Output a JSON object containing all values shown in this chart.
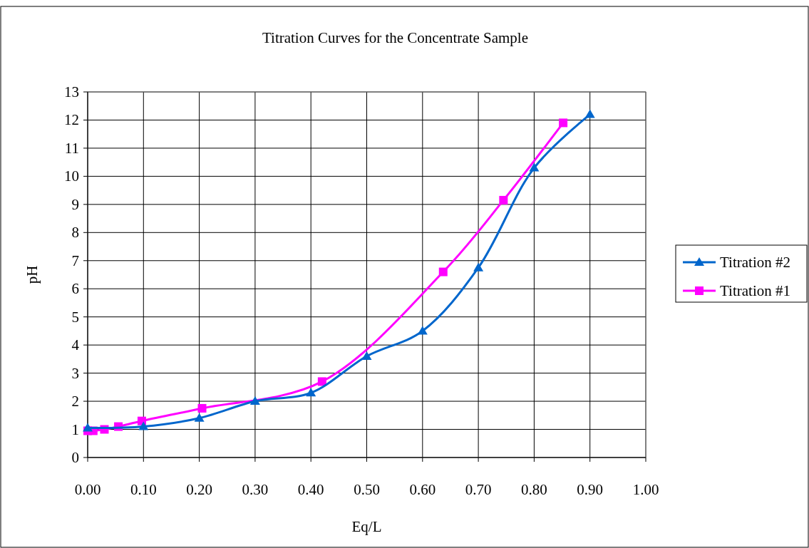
{
  "chart_data": {
    "type": "line",
    "title": "Titration Curves for the Concentrate Sample",
    "xlabel": "Eq/L",
    "ylabel": "pH",
    "xlim": [
      0,
      1
    ],
    "ylim": [
      0,
      13
    ],
    "xticks": [
      {
        "value": 0,
        "label": "0.00"
      },
      {
        "value": 0.1,
        "label": "0.10"
      },
      {
        "value": 0.2,
        "label": "0.20"
      },
      {
        "value": 0.3,
        "label": "0.30"
      },
      {
        "value": 0.4,
        "label": "0.40"
      },
      {
        "value": 0.5,
        "label": "0.50"
      },
      {
        "value": 0.6,
        "label": "0.60"
      },
      {
        "value": 0.7,
        "label": "0.70"
      },
      {
        "value": 0.8,
        "label": "0.80"
      },
      {
        "value": 0.9,
        "label": "0.90"
      },
      {
        "value": 1,
        "label": "1.00"
      }
    ],
    "yticks": [
      0,
      1,
      2,
      3,
      4,
      5,
      6,
      7,
      8,
      9,
      10,
      11,
      12,
      13
    ],
    "grid": true,
    "legend": "right",
    "line_style": "solid",
    "series": [
      {
        "name": "Titration #2",
        "color": "#0066cc",
        "marker": "triangle",
        "x": [
          0,
          0.1,
          0.2,
          0.3,
          0.4,
          0.5,
          0.6,
          0.7,
          0.8,
          0.9
        ],
        "values": [
          1.05,
          1.1,
          1.4,
          2.0,
          2.3,
          3.6,
          4.5,
          6.75,
          10.3,
          12.2
        ]
      },
      {
        "name": "Titration #1",
        "color": "#ff00ff",
        "marker": "square",
        "x": [
          0,
          0.01,
          0.03,
          0.055,
          0.097,
          0.205,
          0.42,
          0.637,
          0.745,
          0.852
        ],
        "values": [
          0.95,
          0.95,
          1.0,
          1.1,
          1.3,
          1.75,
          2.7,
          6.6,
          9.15,
          11.9
        ]
      }
    ]
  }
}
